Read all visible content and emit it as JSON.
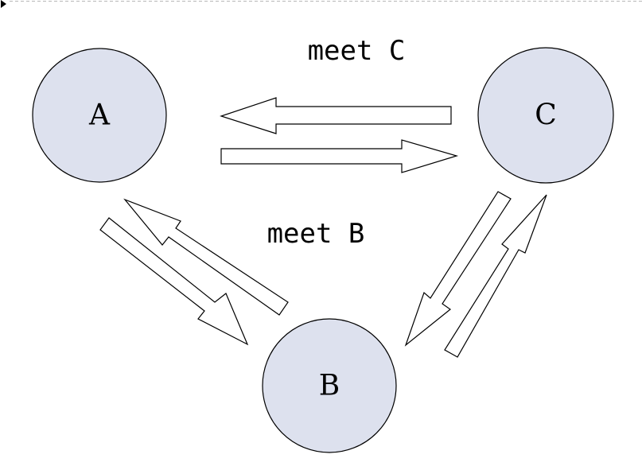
{
  "nodes": [
    {
      "id": "A",
      "label": "A"
    },
    {
      "id": "B",
      "label": "B"
    },
    {
      "id": "C",
      "label": "C"
    }
  ],
  "edge_labels": {
    "a_c": "meet C",
    "a_b": "meet B"
  },
  "colors": {
    "node_fill": "#dde1ee",
    "stroke": "#000000",
    "arrow_fill": "#ffffff"
  },
  "connections": [
    {
      "from": "C",
      "to": "A"
    },
    {
      "from": "A",
      "to": "C"
    },
    {
      "from": "A",
      "to": "B"
    },
    {
      "from": "B",
      "to": "A"
    },
    {
      "from": "C",
      "to": "B"
    },
    {
      "from": "B",
      "to": "C"
    }
  ]
}
